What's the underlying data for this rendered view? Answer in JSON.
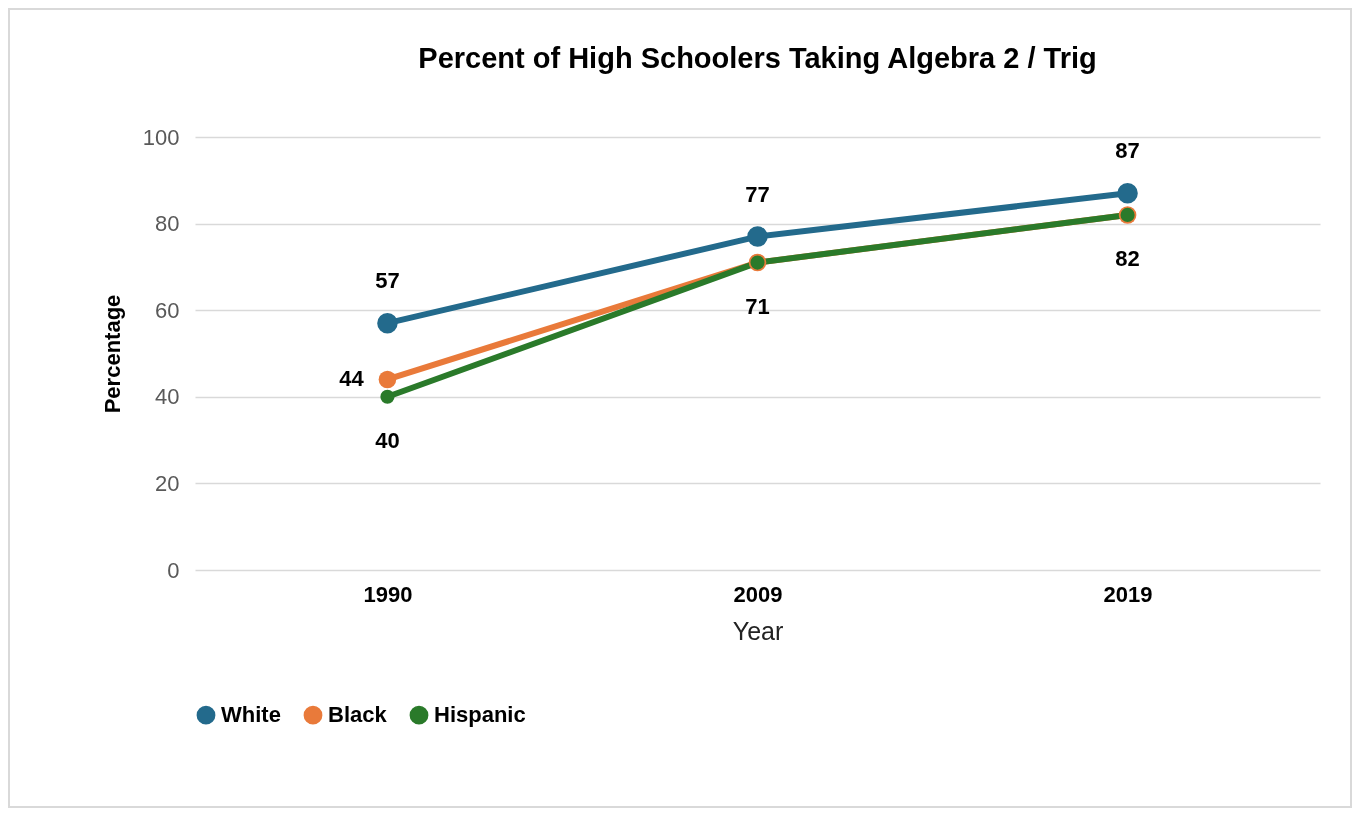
{
  "chart_data": {
    "type": "line",
    "title": "Percent of High Schoolers Taking Algebra 2 / Trig",
    "xlabel": "Year",
    "ylabel": "Percentage",
    "categories": [
      "1990",
      "2009",
      "2019"
    ],
    "series": [
      {
        "name": "White",
        "color": "#236a8c",
        "values": [
          57,
          77,
          87
        ],
        "value_labels": [
          "57",
          "77",
          "87"
        ]
      },
      {
        "name": "Black",
        "color": "#e97a3a",
        "values": [
          44,
          71,
          82
        ],
        "value_labels": [
          "44",
          null,
          null
        ]
      },
      {
        "name": "Hispanic",
        "color": "#2a7a2a",
        "values": [
          40,
          71,
          82
        ],
        "value_labels": [
          "40",
          "71",
          "82"
        ]
      }
    ],
    "ylim": [
      0,
      100
    ],
    "yticks": [
      0,
      20,
      40,
      60,
      80,
      100
    ],
    "grid": "y",
    "legend": "bottom",
    "marker": "circle",
    "line_style": "solid"
  }
}
